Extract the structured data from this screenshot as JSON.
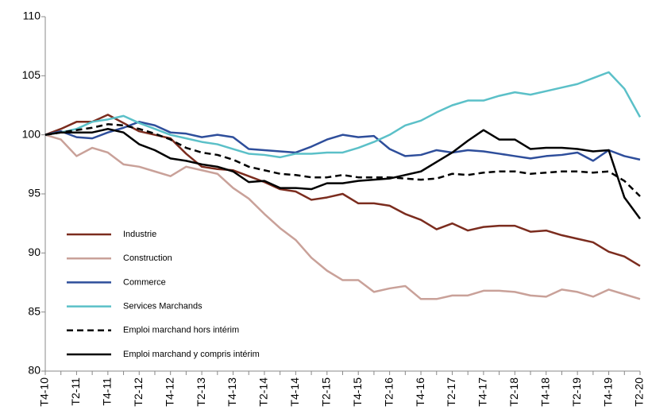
{
  "chart_data": {
    "type": "line",
    "categories": [
      "T4-10",
      null,
      "T2-11",
      null,
      "T4-11",
      null,
      "T2-12",
      null,
      "T4-12",
      null,
      "T2-13",
      null,
      "T4-13",
      null,
      "T2-14",
      null,
      "T4-14",
      null,
      "T2-15",
      null,
      "T4-15",
      null,
      "T2-16",
      null,
      "T4-16",
      null,
      "T2-17",
      null,
      "T4-17",
      null,
      "T2-18",
      null,
      "T4-18",
      null,
      "T2-19",
      null,
      "T4-19",
      null,
      "T2-20"
    ],
    "series": [
      {
        "name": "Industrie",
        "color": "#7b2c1e",
        "dash": false,
        "values": [
          100,
          100.5,
          101.1,
          101.1,
          101.7,
          101,
          100.3,
          100,
          99.7,
          98.4,
          97.3,
          97.1,
          97,
          96.5,
          96,
          95.4,
          95.2,
          94.5,
          94.7,
          95,
          94.2,
          94.2,
          94,
          93.3,
          92.8,
          92,
          92.5,
          91.9,
          92.2,
          92.3,
          92.3,
          91.8,
          91.9,
          91.5,
          91.2,
          90.9,
          90.1,
          89.7,
          88.9
        ]
      },
      {
        "name": "Construction",
        "color": "#c9a199",
        "dash": false,
        "values": [
          100,
          99.6,
          98.2,
          98.9,
          98.5,
          97.5,
          97.3,
          96.9,
          96.5,
          97.3,
          97,
          96.7,
          95.5,
          94.6,
          93.3,
          92.1,
          91.1,
          89.6,
          88.5,
          87.7,
          87.7,
          86.7,
          87,
          87.2,
          86.1,
          86.1,
          86.4,
          86.4,
          86.8,
          86.8,
          86.7,
          86.4,
          86.3,
          86.9,
          86.7,
          86.3,
          86.9,
          86.5,
          86.1
        ]
      },
      {
        "name": "Commerce",
        "color": "#2e4e9b",
        "dash": false,
        "values": [
          100,
          100.3,
          99.8,
          99.7,
          100.2,
          100.6,
          101.1,
          100.8,
          100.2,
          100.1,
          99.8,
          100,
          99.8,
          98.8,
          98.7,
          98.6,
          98.5,
          99,
          99.6,
          100,
          99.8,
          99.9,
          98.8,
          98.2,
          98.3,
          98.7,
          98.5,
          98.7,
          98.6,
          98.4,
          98.2,
          98,
          98.2,
          98.3,
          98.5,
          97.8,
          98.7,
          98.2,
          97.9
        ]
      },
      {
        "name": "Services Marchands",
        "color": "#5bc0c8",
        "dash": false,
        "values": [
          100,
          100.2,
          100.5,
          101.1,
          101.3,
          101.6,
          101,
          100.5,
          100,
          99.7,
          99.4,
          99.2,
          98.8,
          98.4,
          98.3,
          98.1,
          98.4,
          98.4,
          98.5,
          98.5,
          98.9,
          99.4,
          100,
          100.8,
          101.2,
          101.9,
          102.5,
          102.9,
          102.9,
          103.3,
          103.6,
          103.4,
          103.7,
          104,
          104.3,
          104.8,
          105.3,
          103.9,
          101.5
        ]
      },
      {
        "name": "Emploi marchand hors intérim",
        "color": "#000000",
        "dash": true,
        "values": [
          100,
          100.2,
          100.4,
          100.6,
          100.9,
          100.8,
          100.5,
          100.1,
          99.6,
          98.9,
          98.5,
          98.3,
          97.9,
          97.3,
          97,
          96.7,
          96.6,
          96.4,
          96.4,
          96.6,
          96.4,
          96.4,
          96.4,
          96.3,
          96.2,
          96.3,
          96.7,
          96.6,
          96.8,
          96.9,
          96.9,
          96.7,
          96.8,
          96.9,
          96.9,
          96.8,
          96.9,
          96.1,
          94.8
        ]
      },
      {
        "name": "Emploi marchand y compris intérim",
        "color": "#000000",
        "dash": false,
        "values": [
          100,
          100.2,
          100.2,
          100.2,
          100.5,
          100.2,
          99.2,
          98.7,
          98,
          97.8,
          97.5,
          97.3,
          96.9,
          96,
          96.1,
          95.5,
          95.5,
          95.4,
          95.9,
          95.9,
          96.1,
          96.2,
          96.3,
          96.6,
          96.9,
          97.7,
          98.5,
          99.5,
          100.4,
          99.6,
          99.6,
          98.8,
          98.9,
          98.9,
          98.8,
          98.6,
          98.7,
          94.7,
          92.9
        ]
      }
    ],
    "ylim": [
      80,
      110
    ],
    "yticks": [
      80,
      85,
      90,
      95,
      100,
      105,
      110
    ],
    "grid": false,
    "legend": "left"
  }
}
